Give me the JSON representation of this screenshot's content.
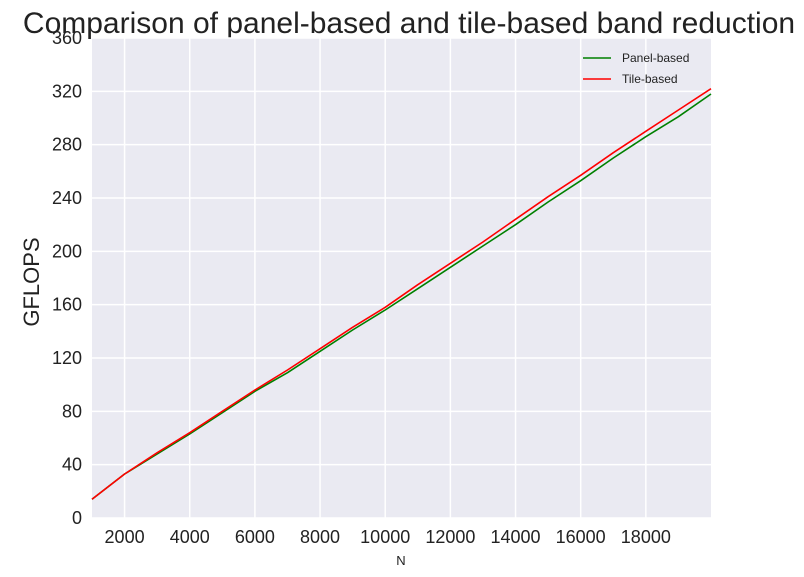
{
  "chart_data": {
    "type": "line",
    "title": "Comparison of panel-based and tile-based band reduction",
    "xlabel": "N",
    "ylabel": "GFLOPS",
    "xlim": [
      1000,
      20000
    ],
    "ylim": [
      0,
      360
    ],
    "xticks": [
      2000,
      4000,
      6000,
      8000,
      10000,
      12000,
      14000,
      16000,
      18000
    ],
    "yticks": [
      0,
      40,
      80,
      120,
      160,
      200,
      240,
      280,
      320,
      360
    ],
    "grid": true,
    "legend_position": "top-right",
    "x": [
      1000,
      2000,
      3000,
      4000,
      5000,
      6000,
      7000,
      8000,
      9000,
      10000,
      11000,
      12000,
      13000,
      14000,
      15000,
      16000,
      17000,
      18000,
      19000,
      20000
    ],
    "series": [
      {
        "name": "Panel-based",
        "color": "#008000",
        "values": [
          14,
          33,
          48,
          63,
          79,
          95,
          109,
          125,
          141,
          156,
          172,
          188,
          204,
          220,
          237,
          253,
          270,
          286,
          301,
          318
        ]
      },
      {
        "name": "Tile-based",
        "color": "#ff0000",
        "values": [
          14,
          33,
          49,
          64,
          80,
          96,
          111,
          127,
          143,
          158,
          175,
          191,
          207,
          224,
          241,
          257,
          274,
          290,
          306,
          322
        ]
      }
    ]
  }
}
